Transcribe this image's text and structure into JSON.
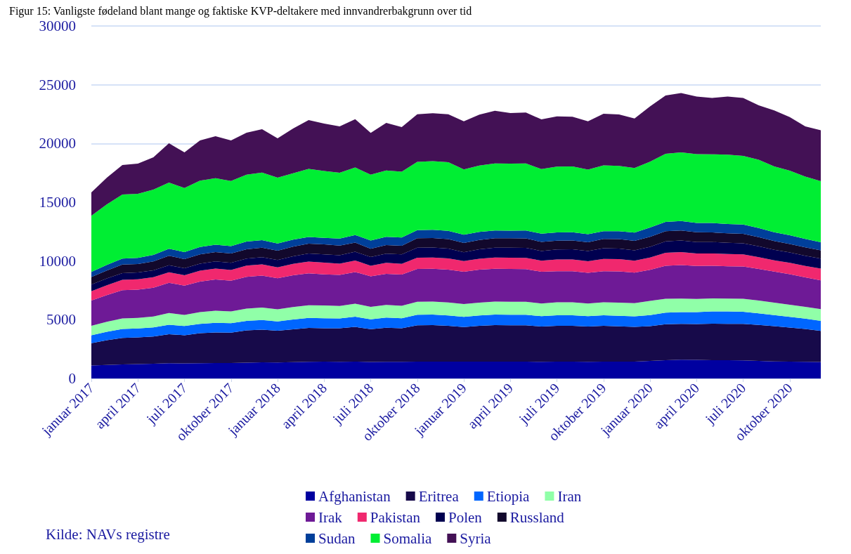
{
  "chart_data": {
    "type": "area",
    "title": "Figur 15: Vanligste fødeland blant mange og faktiske KVP-deltakere med innvandrerbakgrunn over tid",
    "categories": [
      "januar 2017",
      null,
      null,
      "april 2017",
      null,
      null,
      "juli 2017",
      null,
      null,
      "oktober 2017",
      null,
      null,
      "januar 2018",
      null,
      null,
      "april 2018",
      null,
      null,
      "juli 2018",
      null,
      null,
      "oktober 2018",
      null,
      null,
      "januar 2019",
      null,
      null,
      "april 2019",
      null,
      null,
      "juli 2019",
      null,
      null,
      "oktober 2019",
      null,
      null,
      "januar 2020",
      null,
      null,
      "april 2020",
      null,
      null,
      "juli 2020",
      null,
      null,
      "oktober 2020",
      null,
      null
    ],
    "stacked": true,
    "series": [
      {
        "name": "Afghanistan",
        "color": "#0000a0",
        "values": [
          1100,
          1150,
          1200,
          1220,
          1250,
          1300,
          1280,
          1300,
          1320,
          1320,
          1350,
          1370,
          1360,
          1390,
          1420,
          1430,
          1420,
          1440,
          1400,
          1420,
          1420,
          1430,
          1440,
          1430,
          1430,
          1430,
          1440,
          1430,
          1430,
          1420,
          1430,
          1430,
          1420,
          1430,
          1440,
          1440,
          1500,
          1560,
          1600,
          1580,
          1560,
          1550,
          1540,
          1500,
          1450,
          1430,
          1420,
          1400
        ]
      },
      {
        "name": "Eritrea",
        "color": "#170a4a",
        "values": [
          1900,
          2100,
          2250,
          2280,
          2320,
          2470,
          2400,
          2550,
          2600,
          2580,
          2750,
          2780,
          2700,
          2800,
          2880,
          2850,
          2850,
          2950,
          2800,
          2900,
          2850,
          3100,
          3100,
          3050,
          2950,
          3050,
          3100,
          3100,
          3100,
          3000,
          3050,
          3050,
          3000,
          3050,
          3000,
          2950,
          2950,
          3050,
          3050,
          3050,
          3100,
          3100,
          3100,
          3050,
          3000,
          2900,
          2800,
          2650
        ]
      },
      {
        "name": "Etiopia",
        "color": "#0066ff",
        "values": [
          680,
          720,
          760,
          760,
          780,
          800,
          780,
          800,
          820,
          800,
          800,
          820,
          800,
          830,
          850,
          850,
          840,
          870,
          840,
          860,
          850,
          900,
          900,
          890,
          860,
          880,
          900,
          900,
          900,
          880,
          900,
          900,
          880,
          900,
          900,
          900,
          950,
          1000,
          1000,
          1020,
          1040,
          1050,
          1040,
          1000,
          950,
          920,
          880,
          850
        ]
      },
      {
        "name": "Iran",
        "color": "#90ffa8",
        "values": [
          800,
          850,
          900,
          900,
          930,
          1000,
          950,
          1000,
          1030,
          1000,
          1050,
          1060,
          1020,
          1060,
          1080,
          1080,
          1060,
          1100,
          1050,
          1080,
          1070,
          1100,
          1100,
          1100,
          1100,
          1100,
          1100,
          1100,
          1100,
          1080,
          1100,
          1100,
          1080,
          1100,
          1120,
          1120,
          1200,
          1180,
          1150,
          1120,
          1110,
          1100,
          1100,
          1080,
          1050,
          1030,
          1000,
          1000
        ]
      },
      {
        "name": "Irak",
        "color": "#6e1a96",
        "values": [
          2150,
          2280,
          2400,
          2400,
          2450,
          2570,
          2500,
          2600,
          2650,
          2620,
          2700,
          2720,
          2650,
          2700,
          2720,
          2650,
          2640,
          2700,
          2600,
          2650,
          2650,
          2800,
          2800,
          2800,
          2750,
          2800,
          2800,
          2800,
          2780,
          2700,
          2650,
          2650,
          2620,
          2650,
          2650,
          2600,
          2650,
          2800,
          2850,
          2800,
          2780,
          2750,
          2750,
          2700,
          2650,
          2600,
          2500,
          2450
        ]
      },
      {
        "name": "Pakistan",
        "color": "#f0286e",
        "values": [
          800,
          840,
          880,
          880,
          890,
          900,
          880,
          920,
          940,
          920,
          950,
          960,
          930,
          970,
          1000,
          1000,
          960,
          980,
          900,
          930,
          920,
          950,
          960,
          950,
          900,
          930,
          950,
          950,
          960,
          940,
          1000,
          1000,
          980,
          1050,
          1050,
          1020,
          1050,
          1100,
          1100,
          1060,
          1050,
          1050,
          1040,
          1000,
          950,
          960,
          980,
          1000
        ]
      },
      {
        "name": "Polen",
        "color": "#000050",
        "values": [
          560,
          570,
          580,
          580,
          590,
          600,
          590,
          600,
          600,
          600,
          600,
          620,
          620,
          650,
          680,
          700,
          720,
          740,
          750,
          780,
          800,
          850,
          850,
          840,
          750,
          800,
          840,
          850,
          850,
          830,
          850,
          860,
          860,
          900,
          900,
          880,
          900,
          980,
          1000,
          980,
          970,
          950,
          940,
          920,
          900,
          880,
          860,
          850
        ]
      },
      {
        "name": "Russland",
        "color": "#12082c",
        "values": [
          640,
          680,
          720,
          720,
          750,
          800,
          780,
          800,
          800,
          790,
          800,
          800,
          790,
          820,
          840,
          850,
          820,
          780,
          700,
          740,
          740,
          800,
          800,
          800,
          800,
          800,
          800,
          800,
          800,
          770,
          750,
          760,
          760,
          800,
          800,
          800,
          850,
          860,
          850,
          830,
          820,
          800,
          800,
          780,
          750,
          730,
          720,
          700
        ]
      },
      {
        "name": "Sudan",
        "color": "#003f9a",
        "values": [
          440,
          480,
          520,
          530,
          560,
          600,
          600,
          620,
          630,
          630,
          650,
          640,
          620,
          600,
          570,
          550,
          600,
          650,
          700,
          700,
          700,
          700,
          700,
          700,
          700,
          680,
          670,
          650,
          680,
          700,
          700,
          700,
          680,
          650,
          680,
          700,
          800,
          800,
          800,
          800,
          800,
          800,
          790,
          780,
          750,
          740,
          720,
          700
        ]
      },
      {
        "name": "Somalia",
        "color": "#00ee33",
        "values": [
          4780,
          5150,
          5450,
          5450,
          5550,
          5640,
          5450,
          5650,
          5650,
          5550,
          5700,
          5750,
          5600,
          5650,
          5800,
          5700,
          5600,
          5750,
          5600,
          5650,
          5600,
          5800,
          5850,
          5850,
          5550,
          5650,
          5700,
          5700,
          5700,
          5500,
          5600,
          5600,
          5500,
          5600,
          5550,
          5500,
          5600,
          5800,
          5850,
          5850,
          5850,
          5900,
          5850,
          5800,
          5600,
          5500,
          5300,
          5200
        ]
      },
      {
        "name": "Syria",
        "color": "#431155",
        "values": [
          1990,
          2270,
          2510,
          2570,
          2760,
          3340,
          3030,
          3420,
          3580,
          3450,
          3570,
          3700,
          3350,
          3810,
          4150,
          4030,
          3950,
          4100,
          3560,
          4050,
          3800,
          4060,
          4070,
          4080,
          4100,
          4330,
          4490,
          4310,
          4330,
          4230,
          4280,
          4220,
          4110,
          4400,
          4380,
          4220,
          4700,
          4960,
          5050,
          4910,
          4800,
          4950,
          4930,
          4640,
          4760,
          4560,
          4280,
          4320
        ]
      }
    ],
    "ylim": [
      0,
      30000
    ],
    "yticks": [
      0,
      5000,
      10000,
      15000,
      20000,
      25000,
      30000
    ],
    "grid": "y",
    "legend": "bottom",
    "annotations": [
      "Kilde: NAVs registre"
    ]
  }
}
